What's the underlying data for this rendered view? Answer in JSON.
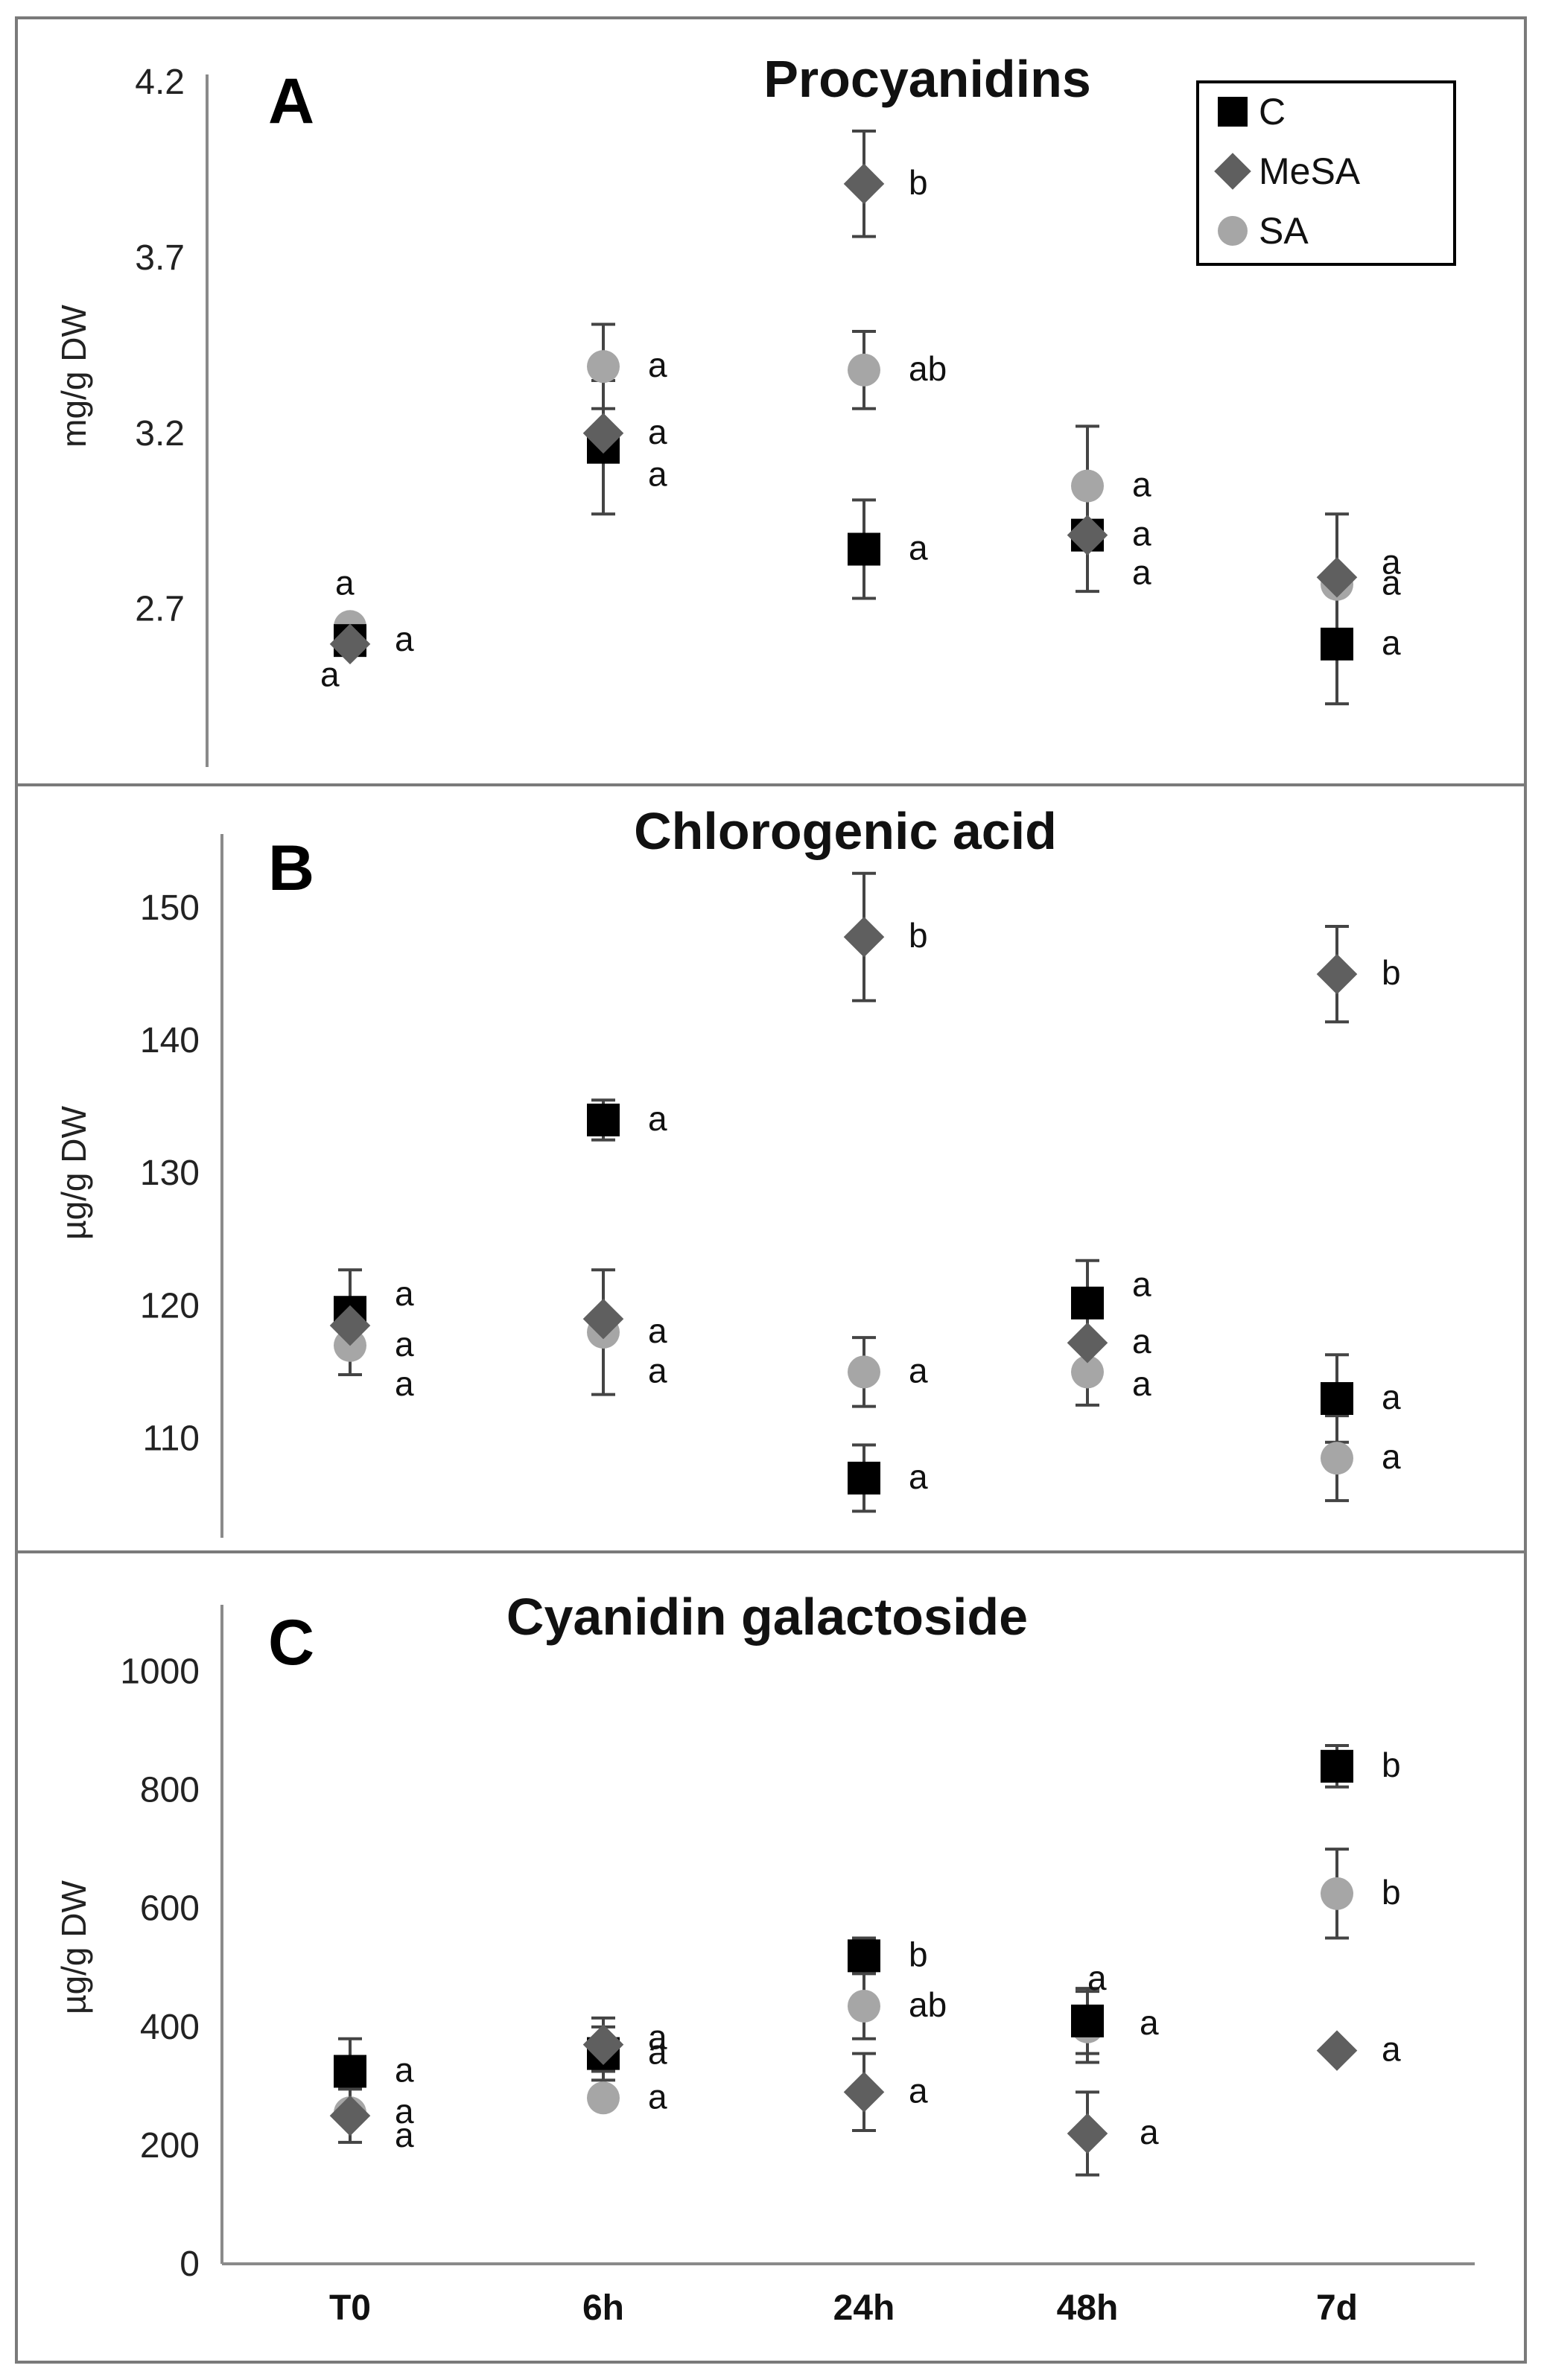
{
  "colors": {
    "C": "#000000",
    "MeSA": "#5f5f5f",
    "SA": "#a6a6a6",
    "axis": "#8a8a8a",
    "frame": "#7a7a7a",
    "errorbar": "#444444"
  },
  "legend": [
    {
      "key": "C",
      "label": "C",
      "shape": "square"
    },
    {
      "key": "MeSA",
      "label": "MeSA",
      "shape": "diamond"
    },
    {
      "key": "SA",
      "label": "SA",
      "shape": "circle"
    }
  ],
  "categories": [
    "T0",
    "6h",
    "24h",
    "48h",
    "7d"
  ],
  "chart_data": [
    {
      "type": "scatter",
      "panel": "A",
      "title": "Procyanidins",
      "ylabel": "mg/g DW",
      "ylim": [
        2.25,
        4.2
      ],
      "yticks": [
        "2.7",
        "3.2",
        "3.7",
        "4.2"
      ],
      "categories": [
        "T0",
        "6h",
        "24h",
        "48h",
        "7d"
      ],
      "series": [
        {
          "name": "C",
          "values": [
            2.61,
            3.16,
            2.87,
            2.91,
            2.6
          ],
          "errors": [
            0,
            0.19,
            0.14,
            0.16,
            0.17
          ]
        },
        {
          "name": "MeSA",
          "values": [
            2.6,
            3.2,
            3.91,
            2.91,
            2.79
          ],
          "errors": [
            0,
            0,
            0.15,
            0,
            0
          ]
        },
        {
          "name": "SA",
          "values": [
            2.65,
            3.39,
            3.38,
            3.05,
            2.77
          ],
          "errors": [
            0,
            0.12,
            0.11,
            0.17,
            0.2
          ]
        }
      ],
      "labels": [
        {
          "text": "a",
          "cat": 0,
          "y": 2.77,
          "dx": -20
        },
        {
          "text": "a",
          "cat": 0,
          "y": 2.61,
          "dx": 60
        },
        {
          "text": "a",
          "cat": 0,
          "y": 2.51,
          "dx": -40
        },
        {
          "text": "a",
          "cat": 1,
          "y": 3.39,
          "dx": 60
        },
        {
          "text": "a",
          "cat": 1,
          "y": 3.2,
          "dx": 60
        },
        {
          "text": "a",
          "cat": 1,
          "y": 3.08,
          "dx": 60
        },
        {
          "text": "b",
          "cat": 2,
          "y": 3.91,
          "dx": 60
        },
        {
          "text": "ab",
          "cat": 2,
          "y": 3.38,
          "dx": 60
        },
        {
          "text": "a",
          "cat": 2,
          "y": 2.87,
          "dx": 60
        },
        {
          "text": "a",
          "cat": 3,
          "y": 3.05,
          "dx": 60
        },
        {
          "text": "a",
          "cat": 3,
          "y": 2.91,
          "dx": 60
        },
        {
          "text": "a",
          "cat": 3,
          "y": 2.8,
          "dx": 60
        },
        {
          "text": "a",
          "cat": 4,
          "y": 2.83,
          "dx": 60
        },
        {
          "text": "a",
          "cat": 4,
          "y": 2.77,
          "dx": 60
        },
        {
          "text": "a",
          "cat": 4,
          "y": 2.6,
          "dx": 60
        }
      ]
    },
    {
      "type": "scatter",
      "panel": "B",
      "title": "Chlorogenic acid",
      "ylabel": "µg/g DW",
      "ylim": [
        102.5,
        155
      ],
      "yticks": [
        "110",
        "120",
        "130",
        "140",
        "150"
      ],
      "categories": [
        "T0",
        "6h",
        "24h",
        "48h",
        "7d"
      ],
      "series": [
        {
          "name": "C",
          "values": [
            119.5,
            134.0,
            107.0,
            120.2,
            113.0
          ],
          "errors": [
            3.2,
            1.5,
            2.5,
            3.2,
            3.3
          ]
        },
        {
          "name": "MeSA",
          "values": [
            118.5,
            119.0,
            147.8,
            117.2,
            145.0
          ],
          "errors": [
            0,
            0,
            4.8,
            0,
            3.6
          ]
        },
        {
          "name": "SA",
          "values": [
            117.0,
            118.0,
            115.0,
            115.0,
            108.5
          ],
          "errors": [
            2.2,
            4.7,
            2.6,
            2.5,
            3.2
          ]
        }
      ],
      "labels": [
        {
          "text": "a",
          "cat": 0,
          "y": 120.8,
          "dx": 60
        },
        {
          "text": "a",
          "cat": 0,
          "y": 117.0,
          "dx": 60
        },
        {
          "text": "a",
          "cat": 0,
          "y": 114.0,
          "dx": 60
        },
        {
          "text": "a",
          "cat": 1,
          "y": 134.0,
          "dx": 60
        },
        {
          "text": "a",
          "cat": 1,
          "y": 118.0,
          "dx": 60
        },
        {
          "text": "a",
          "cat": 1,
          "y": 115.0,
          "dx": 60
        },
        {
          "text": "b",
          "cat": 2,
          "y": 147.8,
          "dx": 60
        },
        {
          "text": "a",
          "cat": 2,
          "y": 115.0,
          "dx": 60
        },
        {
          "text": "a",
          "cat": 2,
          "y": 107.0,
          "dx": 60
        },
        {
          "text": "a",
          "cat": 3,
          "y": 121.5,
          "dx": 60
        },
        {
          "text": "a",
          "cat": 3,
          "y": 117.2,
          "dx": 60
        },
        {
          "text": "a",
          "cat": 3,
          "y": 114.0,
          "dx": 60
        },
        {
          "text": "b",
          "cat": 4,
          "y": 145.0,
          "dx": 60
        },
        {
          "text": "a",
          "cat": 4,
          "y": 113.0,
          "dx": 60
        },
        {
          "text": "a",
          "cat": 4,
          "y": 108.5,
          "dx": 60
        }
      ]
    },
    {
      "type": "scatter",
      "panel": "C",
      "title": "Cyanidin galactoside",
      "ylabel": "µg/g DW",
      "ylim": [
        0,
        1100
      ],
      "yticks": [
        "0",
        "200",
        "400",
        "600",
        "800",
        "1000"
      ],
      "categories": [
        "T0",
        "6h",
        "24h",
        "48h",
        "7d"
      ],
      "series": [
        {
          "name": "C",
          "values": [
            325,
            355,
            520,
            410,
            840
          ],
          "errors": [
            55,
            45,
            30,
            55,
            35
          ]
        },
        {
          "name": "MeSA",
          "values": [
            250,
            370,
            290,
            220,
            360
          ],
          "errors": [
            45,
            45,
            65,
            70,
            0
          ]
        },
        {
          "name": "SA",
          "values": [
            255,
            280,
            435,
            400,
            625
          ],
          "errors": [
            0,
            0,
            55,
            60,
            75
          ]
        }
      ],
      "labels": [
        {
          "text": "a",
          "cat": 0,
          "y": 325,
          "dx": 60
        },
        {
          "text": "a",
          "cat": 0,
          "y": 255,
          "dx": 60
        },
        {
          "text": "a",
          "cat": 0,
          "y": 215,
          "dx": 60
        },
        {
          "text": "a",
          "cat": 1,
          "y": 380,
          "dx": 60
        },
        {
          "text": "a",
          "cat": 1,
          "y": 355,
          "dx": 60
        },
        {
          "text": "a",
          "cat": 1,
          "y": 280,
          "dx": 60
        },
        {
          "text": "b",
          "cat": 2,
          "y": 520,
          "dx": 60
        },
        {
          "text": "ab",
          "cat": 2,
          "y": 435,
          "dx": 60
        },
        {
          "text": "a",
          "cat": 2,
          "y": 290,
          "dx": 60
        },
        {
          "text": "a",
          "cat": 3,
          "y": 480,
          "dx": 0
        },
        {
          "text": "a",
          "cat": 3,
          "y": 405,
          "dx": 70
        },
        {
          "text": "a",
          "cat": 3,
          "y": 220,
          "dx": 70
        },
        {
          "text": "b",
          "cat": 4,
          "y": 840,
          "dx": 60
        },
        {
          "text": "b",
          "cat": 4,
          "y": 625,
          "dx": 60
        },
        {
          "text": "a",
          "cat": 4,
          "y": 360,
          "dx": 60
        }
      ]
    }
  ]
}
